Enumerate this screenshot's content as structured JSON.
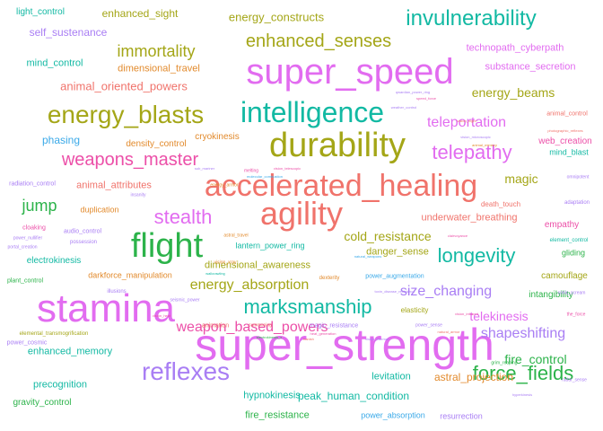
{
  "palette": {
    "red": "#F0736B",
    "pink": "#EC4FA8",
    "magenta": "#E26CF0",
    "violet": "#A97EF4",
    "blue": "#3AA9E8",
    "teal": "#12B9A3",
    "green": "#2CB34A",
    "olive": "#A4A617",
    "orange": "#E28A2C"
  },
  "words": [
    {
      "text": "super_strength",
      "color": "magenta"
    },
    {
      "text": "super_speed",
      "color": "magenta"
    },
    {
      "text": "durability",
      "color": "olive"
    },
    {
      "text": "stamina",
      "color": "magenta"
    },
    {
      "text": "accelerated_healing",
      "color": "red"
    },
    {
      "text": "flight",
      "color": "green"
    },
    {
      "text": "agility",
      "color": "red"
    },
    {
      "text": "intelligence",
      "color": "teal"
    },
    {
      "text": "energy_blasts",
      "color": "olive"
    },
    {
      "text": "invulnerability",
      "color": "teal"
    },
    {
      "text": "reflexes",
      "color": "violet"
    },
    {
      "text": "stealth",
      "color": "magenta"
    },
    {
      "text": "marksmanship",
      "color": "teal"
    },
    {
      "text": "weapons_master",
      "color": "pink"
    },
    {
      "text": "longevity",
      "color": "teal"
    },
    {
      "text": "enhanced_senses",
      "color": "olive"
    },
    {
      "text": "force_fields",
      "color": "green"
    },
    {
      "text": "telepathy",
      "color": "magenta"
    },
    {
      "text": "immortality",
      "color": "olive"
    },
    {
      "text": "weapon_based_powers",
      "color": "pink"
    },
    {
      "text": "energy_absorption",
      "color": "olive"
    },
    {
      "text": "shapeshifting",
      "color": "violet"
    },
    {
      "text": "teleportation",
      "color": "magenta"
    },
    {
      "text": "size_changing",
      "color": "violet"
    },
    {
      "text": "telekinesis",
      "color": "magenta"
    },
    {
      "text": "cold_resistance",
      "color": "olive"
    },
    {
      "text": "jump",
      "color": "green"
    },
    {
      "text": "fire_control",
      "color": "green"
    },
    {
      "text": "magic",
      "color": "olive"
    },
    {
      "text": "energy_beams",
      "color": "olive"
    },
    {
      "text": "animal_oriented_powers",
      "color": "red"
    },
    {
      "text": "energy_constructs",
      "color": "olive"
    },
    {
      "text": "self_sustenance",
      "color": "violet"
    },
    {
      "text": "enhanced_sight",
      "color": "olive"
    },
    {
      "text": "technopath_cyberpath",
      "color": "magenta"
    },
    {
      "text": "dimensional_travel",
      "color": "orange"
    },
    {
      "text": "substance_secretion",
      "color": "magenta"
    },
    {
      "text": "light_control",
      "color": "teal"
    },
    {
      "text": "mind_control",
      "color": "teal"
    },
    {
      "text": "phasing",
      "color": "blue"
    },
    {
      "text": "density_control",
      "color": "orange"
    },
    {
      "text": "cryokinesis",
      "color": "orange"
    },
    {
      "text": "animal_attributes",
      "color": "red"
    },
    {
      "text": "duplication",
      "color": "orange"
    },
    {
      "text": "electrokinesis",
      "color": "teal"
    },
    {
      "text": "darkforce_manipulation",
      "color": "orange"
    },
    {
      "text": "dimensional_awareness",
      "color": "olive"
    },
    {
      "text": "lantern_power_ring",
      "color": "teal"
    },
    {
      "text": "danger_sense",
      "color": "olive"
    },
    {
      "text": "underwater_breathing",
      "color": "red"
    },
    {
      "text": "empathy",
      "color": "pink"
    },
    {
      "text": "camouflage",
      "color": "olive"
    },
    {
      "text": "intangibility",
      "color": "green"
    },
    {
      "text": "gliding",
      "color": "green"
    },
    {
      "text": "levitation",
      "color": "teal"
    },
    {
      "text": "astral_projection",
      "color": "orange"
    },
    {
      "text": "peak_human_condition",
      "color": "teal"
    },
    {
      "text": "hypnokinesis",
      "color": "teal"
    },
    {
      "text": "fire_resistance",
      "color": "green"
    },
    {
      "text": "power_absorption",
      "color": "blue"
    },
    {
      "text": "resurrection",
      "color": "violet"
    },
    {
      "text": "enhanced_memory",
      "color": "teal"
    },
    {
      "text": "precognition",
      "color": "teal"
    },
    {
      "text": "gravity_control",
      "color": "green"
    },
    {
      "text": "web_creation",
      "color": "pink"
    },
    {
      "text": "mind_blast",
      "color": "teal"
    },
    {
      "text": "death_touch",
      "color": "red"
    },
    {
      "text": "elasticity",
      "color": "olive"
    },
    {
      "text": "power_augmentation",
      "color": "blue"
    },
    {
      "text": "dexterity",
      "color": "orange"
    },
    {
      "text": "animation",
      "color": "red"
    },
    {
      "text": "magic_resistance",
      "color": "violet"
    },
    {
      "text": "possession",
      "color": "violet"
    },
    {
      "text": "audio_control",
      "color": "violet"
    },
    {
      "text": "cloaking",
      "color": "pink"
    },
    {
      "text": "radiation_control",
      "color": "violet"
    },
    {
      "text": "power_nullifier",
      "color": "violet"
    },
    {
      "text": "portal_creation",
      "color": "violet"
    },
    {
      "text": "plant_control",
      "color": "green"
    },
    {
      "text": "elemental_transmogrification",
      "color": "olive"
    },
    {
      "text": "power_cosmic",
      "color": "violet"
    },
    {
      "text": "animal_control",
      "color": "red"
    },
    {
      "text": "omnipotent",
      "color": "violet"
    },
    {
      "text": "adaptation",
      "color": "violet"
    },
    {
      "text": "element_control",
      "color": "teal"
    },
    {
      "text": "sonic_scream",
      "color": "violet"
    },
    {
      "text": "the_force",
      "color": "pink"
    },
    {
      "text": "radar_sense",
      "color": "violet"
    },
    {
      "text": "photographic_reflexes",
      "color": "red"
    },
    {
      "text": "clairvoyance",
      "color": "pink"
    },
    {
      "text": "insanity",
      "color": "violet"
    },
    {
      "text": "summoning",
      "color": "red"
    },
    {
      "text": "grim_reaping",
      "color": "green"
    },
    {
      "text": "power_sense",
      "color": "violet"
    },
    {
      "text": "astral_travel",
      "color": "orange"
    },
    {
      "text": "seismic_power",
      "color": "violet"
    },
    {
      "text": "vision_xray",
      "color": "orange"
    },
    {
      "text": "illusions",
      "color": "violet"
    },
    {
      "text": "melting",
      "color": "pink"
    },
    {
      "text": "sub_mariner",
      "color": "violet"
    },
    {
      "text": "molecular_combustion",
      "color": "blue"
    },
    {
      "text": "energy_armor",
      "color": "orange"
    },
    {
      "text": "qwardian_power_ring",
      "color": "violet"
    },
    {
      "text": "vision_microscopic",
      "color": "violet"
    },
    {
      "text": "speed_force",
      "color": "pink"
    },
    {
      "text": "animal_mimicry",
      "color": "orange"
    },
    {
      "text": "vision_telescopic",
      "color": "pink"
    },
    {
      "text": "natural_weapons",
      "color": "blue"
    },
    {
      "text": "vision_night",
      "color": "red"
    },
    {
      "text": "weather_control",
      "color": "violet"
    },
    {
      "text": "natural_armor",
      "color": "red"
    },
    {
      "text": "toxin_disease_resistance",
      "color": "violet"
    },
    {
      "text": "heat_generation",
      "color": "pink"
    },
    {
      "text": "vision_thermal",
      "color": "violet"
    },
    {
      "text": "wallcrawling",
      "color": "teal"
    },
    {
      "text": "electrokinesis_x",
      "color": "green"
    },
    {
      "text": "banish",
      "color": "red"
    },
    {
      "text": "vision_infrared",
      "color": "pink"
    },
    {
      "text": "hyperkinesis",
      "color": "violet"
    },
    {
      "text": "vision_heat",
      "color": "pink"
    },
    {
      "text": "changing_armor",
      "color": "violet"
    }
  ]
}
